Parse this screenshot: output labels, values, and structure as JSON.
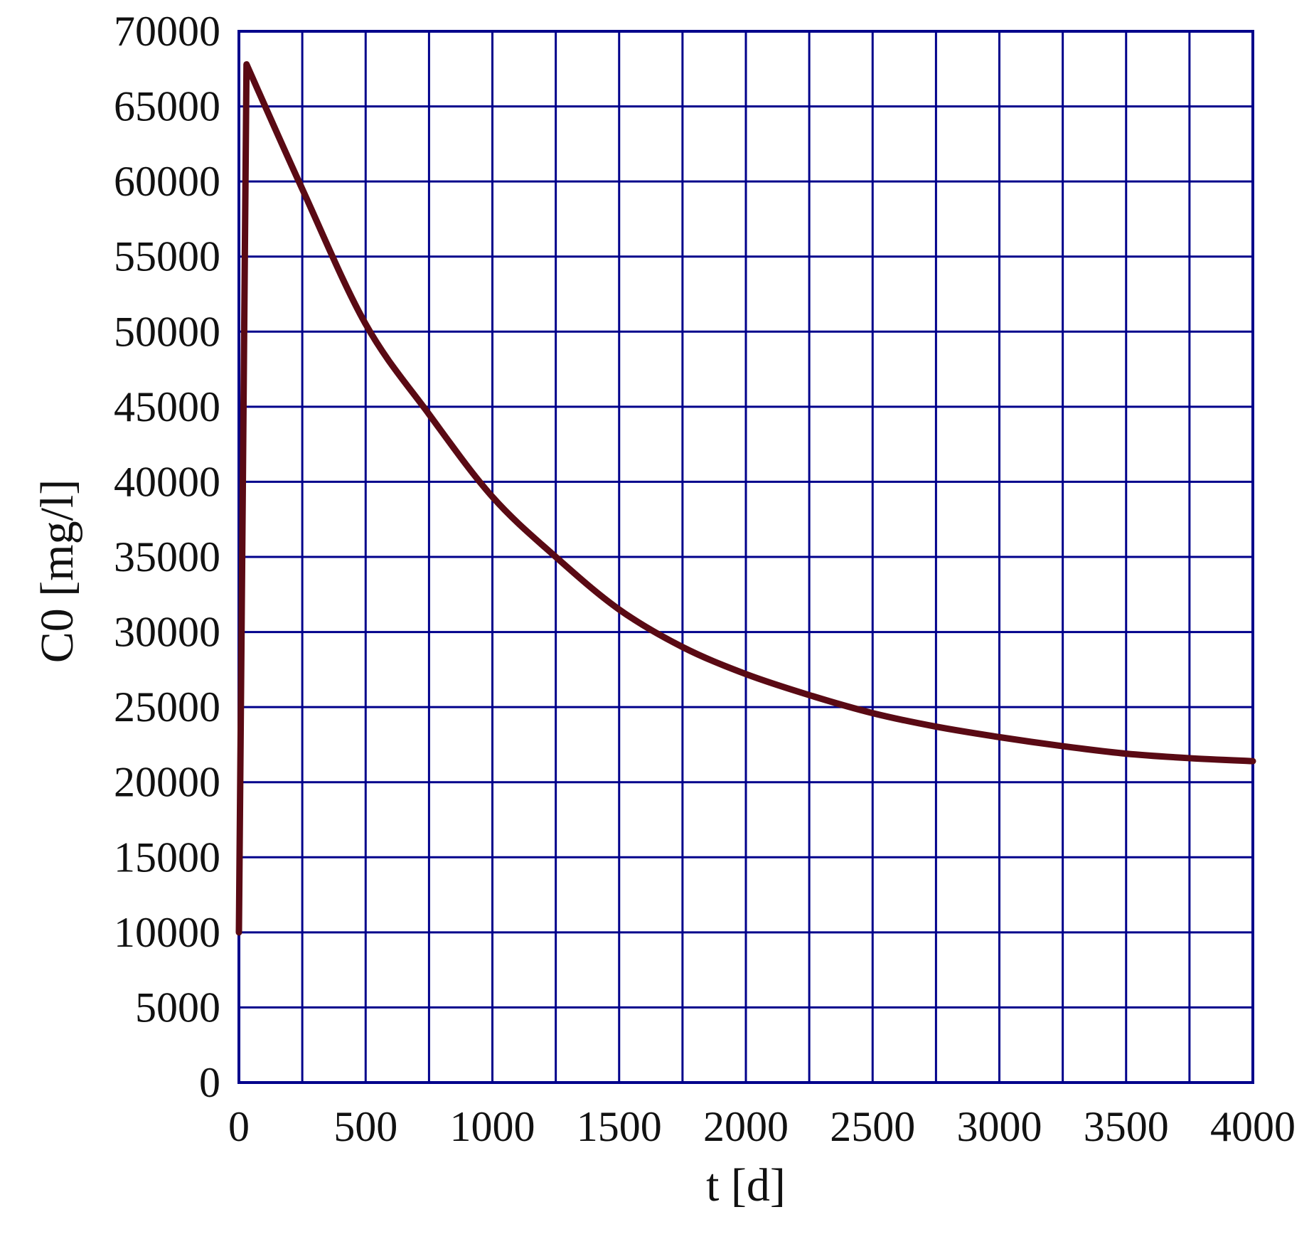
{
  "chart_data": {
    "type": "line",
    "xlabel": "t [d]",
    "ylabel": "C0 [mg/l]",
    "xlim": [
      0,
      4000
    ],
    "ylim": [
      0,
      70000
    ],
    "x_ticks": [
      "0",
      "500",
      "1000",
      "1500",
      "2000",
      "2500",
      "3000",
      "3500",
      "4000"
    ],
    "y_ticks": [
      "0",
      "5000",
      "10000",
      "15000",
      "20000",
      "25000",
      "30000",
      "35000",
      "40000",
      "45000",
      "50000",
      "55000",
      "60000",
      "65000",
      "70000"
    ],
    "grid": true,
    "colors": {
      "grid": "#00008b",
      "line": "#5a0a14"
    },
    "series": [
      {
        "x": [
          0,
          30,
          250,
          500,
          750,
          1000,
          1250,
          1500,
          1750,
          2000,
          2250,
          2500,
          2750,
          3000,
          3250,
          3500,
          3750,
          4000
        ],
        "y": [
          10000,
          67800,
          59500,
          50500,
          44500,
          39000,
          35000,
          31500,
          29000,
          27200,
          25800,
          24600,
          23700,
          23000,
          22400,
          21900,
          21600,
          21400
        ]
      }
    ]
  }
}
